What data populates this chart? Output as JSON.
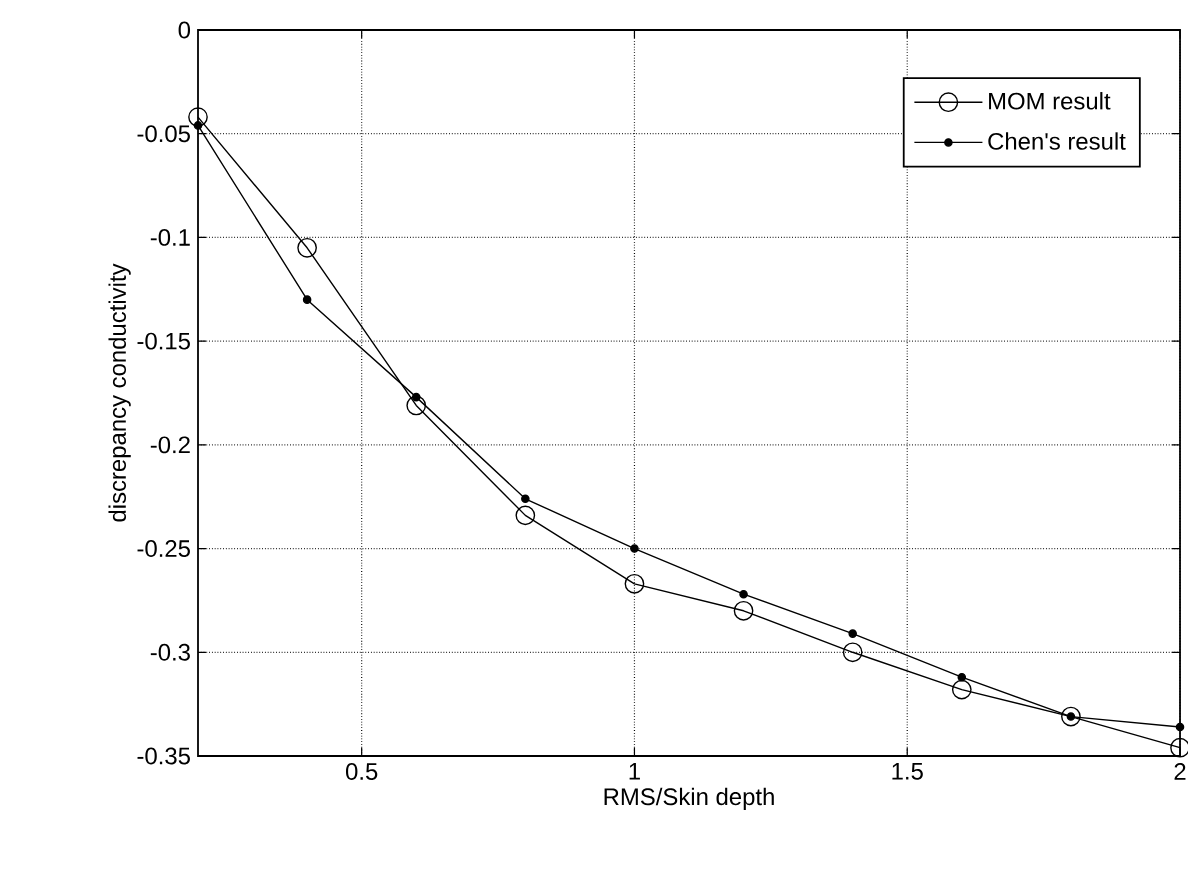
{
  "chart_data": {
    "type": "line",
    "xlabel": "RMS/Skin depth",
    "ylabel": "discrepancy conductivity",
    "x": [
      0.2,
      0.4,
      0.6,
      0.8,
      1.0,
      1.2,
      1.4,
      1.6,
      1.8,
      2.0
    ],
    "series": [
      {
        "name": "MOM result",
        "color": "#000000",
        "marker": "circle",
        "values": [
          -0.042,
          -0.105,
          -0.181,
          -0.234,
          -0.267,
          -0.28,
          -0.3,
          -0.318,
          -0.331,
          -0.346
        ]
      },
      {
        "name": "Chen's result",
        "color": "#000000",
        "marker": "circle",
        "values": [
          -0.046,
          -0.13,
          -0.177,
          -0.226,
          -0.25,
          -0.272,
          -0.291,
          -0.312,
          -0.331,
          -0.336
        ]
      }
    ],
    "xlim": [
      0.2,
      2
    ],
    "xticks": [
      0.5,
      1,
      1.5,
      2
    ],
    "ylim": [
      -0.35,
      0
    ],
    "yticks": [
      -0.35,
      -0.3,
      -0.25,
      -0.2,
      -0.15,
      -0.1,
      -0.05,
      0
    ],
    "grid": true,
    "legend": "top right",
    "line_style": "solid"
  }
}
